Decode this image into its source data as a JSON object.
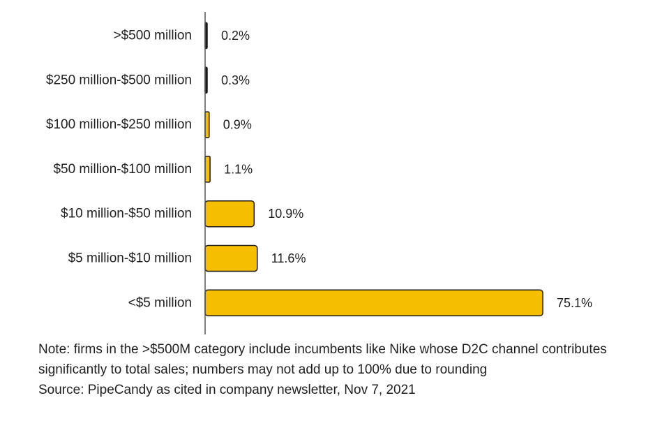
{
  "chart_data": {
    "type": "bar",
    "orientation": "horizontal",
    "categories": [
      ">$500 million",
      "$250 million-$500 million",
      "$100 million-$250 million",
      "$50 million-$100 million",
      "$10 million-$50 million",
      "$5 million-$10 million",
      "<$5 million"
    ],
    "values": [
      0.2,
      0.3,
      0.9,
      1.1,
      10.9,
      11.6,
      75.1
    ],
    "data_labels": [
      "0.2%",
      "0.3%",
      "0.9%",
      "1.1%",
      "10.9%",
      "11.6%",
      "75.1%"
    ],
    "bar_colors": [
      "#1a1a1a",
      "#1a1a1a",
      "#f5bf00",
      "#f5bf00",
      "#f5bf00",
      "#f5bf00",
      "#f5bf00"
    ],
    "bar_outline_color": "#1a1a1a",
    "axis_color": "#555555",
    "title": "",
    "xlabel": "",
    "ylabel": "",
    "xlim": [
      0,
      75.1
    ],
    "grid": false,
    "legend": "none"
  },
  "footer": {
    "note": "Note: firms in the >$500M category include incumbents like Nike whose D2C channel contributes significantly to total sales; numbers may not add up to 100% due to rounding",
    "source": "Source: PipeCandy as cited in company newsletter, Nov 7, 2021"
  }
}
